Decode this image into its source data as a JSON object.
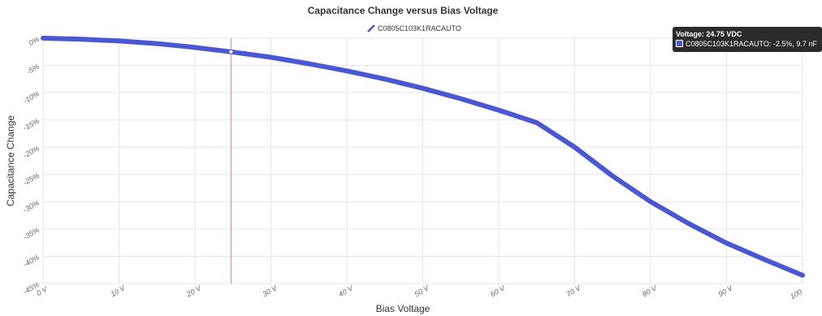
{
  "chart_data": {
    "type": "line",
    "title": "Capacitance Change versus Bias Voltage",
    "xlabel": "Bias Voltage",
    "ylabel": "Capacitance Change",
    "xlim": [
      0,
      100
    ],
    "ylim": [
      -45,
      0
    ],
    "x_ticks": [
      "0 V",
      "10 V",
      "20 V",
      "30 V",
      "40 V",
      "50 V",
      "60 V",
      "70 V",
      "80 V",
      "90 V",
      "100"
    ],
    "y_ticks": [
      "0%",
      "-5%",
      "-10%",
      "-15%",
      "-20%",
      "-25%",
      "-30%",
      "-35%",
      "-40%",
      "-45%"
    ],
    "grid": true,
    "legend_position": "top-center",
    "series": [
      {
        "name": "C0805C103K1RACAUTO",
        "color": "#4a57d2",
        "x": [
          0,
          5,
          10,
          15,
          20,
          24.75,
          30,
          35,
          40,
          45,
          50,
          55,
          60,
          65,
          70,
          75,
          80,
          85,
          90,
          95,
          100
        ],
        "y": [
          0,
          -0.2,
          -0.5,
          -1.0,
          -1.7,
          -2.5,
          -3.5,
          -4.7,
          -6.0,
          -7.5,
          -9.2,
          -11.1,
          -13.2,
          -15.5,
          -20.0,
          -25.3,
          -30.0,
          -34.0,
          -37.6,
          -40.6,
          -43.5
        ]
      }
    ],
    "crosshair_x": 24.75,
    "tooltip": {
      "title": "Voltage: 24.75 VDC",
      "line": "C0805C103K1RACAUTO: -2.5%, 9.7 nF"
    }
  }
}
